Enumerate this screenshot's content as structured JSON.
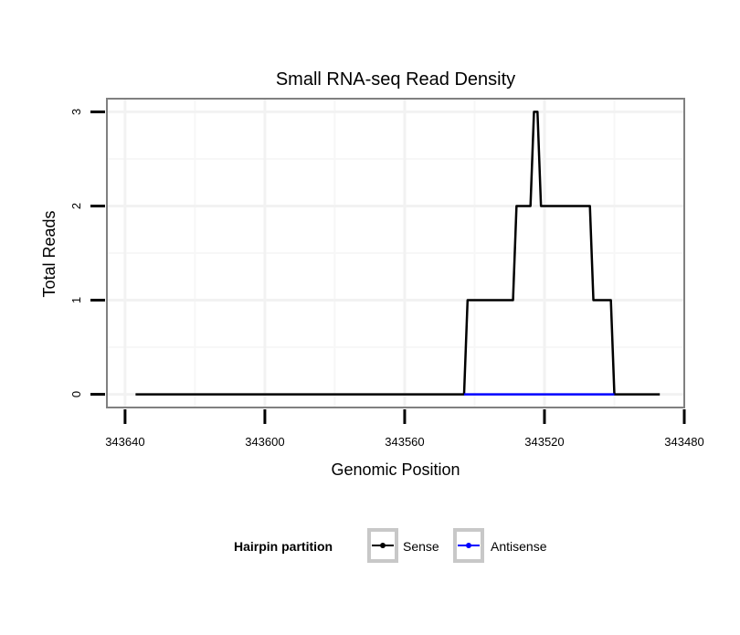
{
  "chart_data": {
    "type": "line",
    "title": "Small RNA-seq Read Density",
    "xlabel": "Genomic Position",
    "ylabel": "Total Reads",
    "xlim": [
      343645.2,
      343480
    ],
    "x_reversed": true,
    "ylim": [
      -0.14,
      3.14
    ],
    "xticks": [
      343640,
      343600,
      343560,
      343520,
      343480
    ],
    "xtick_labels": [
      "343640",
      "343600",
      "343560",
      "343520",
      "343480"
    ],
    "yticks": [
      0,
      1,
      2,
      3
    ],
    "ytick_labels": [
      "0",
      "1",
      "2",
      "3"
    ],
    "grid": true,
    "legend": {
      "title": "Hairpin partition",
      "placement": "bottom",
      "entries": [
        "Sense",
        "Antisense"
      ]
    },
    "series": [
      {
        "name": "Sense",
        "color": "#000000",
        "x": [
          343637,
          343543,
          343542,
          343529,
          343528,
          343524,
          343523,
          343522,
          343521,
          343507,
          343506,
          343501,
          343500,
          343487
        ],
        "y": [
          0,
          0,
          1,
          1,
          2,
          2,
          3,
          3,
          2,
          2,
          1,
          1,
          0,
          0
        ]
      },
      {
        "name": "Antisense",
        "color": "#0000ff",
        "x": [
          343543,
          343500
        ],
        "y": [
          0,
          0
        ]
      }
    ]
  }
}
